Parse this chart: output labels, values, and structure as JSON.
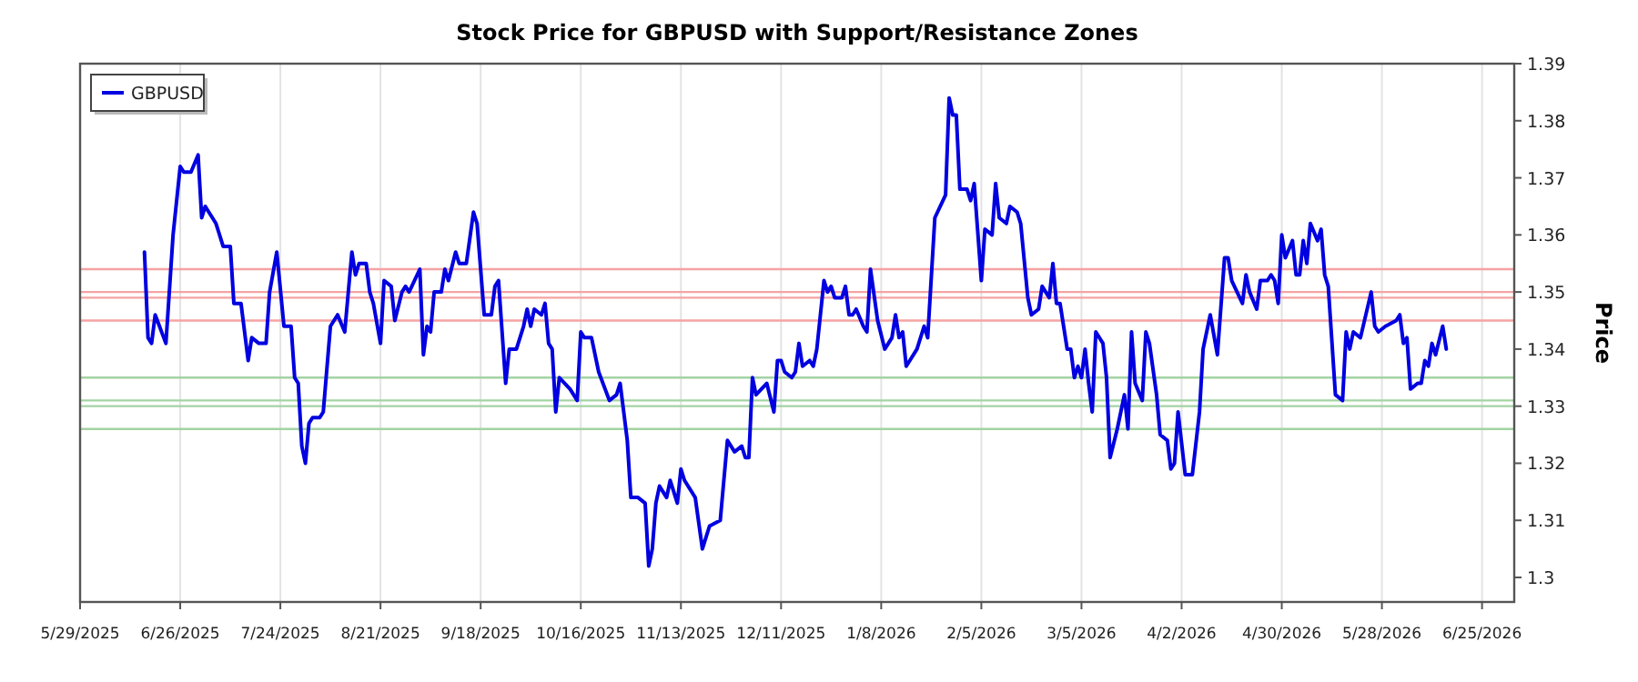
{
  "chart_data": {
    "type": "line",
    "title": "Stock Price for GBPUSD with Support/Resistance Zones",
    "ylabel": "Price",
    "x": [
      "2025-06-16",
      "2025-06-17",
      "2025-06-18",
      "2025-06-19",
      "2025-06-22",
      "2025-06-24",
      "2025-06-26",
      "2025-06-27",
      "2025-06-29",
      "2025-07-01",
      "2025-07-02",
      "2025-07-03",
      "2025-07-04",
      "2025-07-06",
      "2025-07-08",
      "2025-07-10",
      "2025-07-11",
      "2025-07-13",
      "2025-07-15",
      "2025-07-16",
      "2025-07-18",
      "2025-07-20",
      "2025-07-21",
      "2025-07-23",
      "2025-07-25",
      "2025-07-27",
      "2025-07-28",
      "2025-07-29",
      "2025-07-30",
      "2025-07-31",
      "2025-08-01",
      "2025-08-02",
      "2025-08-04",
      "2025-08-05",
      "2025-08-07",
      "2025-08-09",
      "2025-08-11",
      "2025-08-13",
      "2025-08-14",
      "2025-08-15",
      "2025-08-17",
      "2025-08-18",
      "2025-08-19",
      "2025-08-21",
      "2025-08-22",
      "2025-08-24",
      "2025-08-25",
      "2025-08-27",
      "2025-08-28",
      "2025-08-29",
      "2025-09-01",
      "2025-09-02",
      "2025-09-03",
      "2025-09-04",
      "2025-09-05",
      "2025-09-07",
      "2025-09-08",
      "2025-09-09",
      "2025-09-11",
      "2025-09-12",
      "2025-09-14",
      "2025-09-16",
      "2025-09-17",
      "2025-09-19",
      "2025-09-21",
      "2025-09-22",
      "2025-09-23",
      "2025-09-25",
      "2025-09-26",
      "2025-09-28",
      "2025-09-30",
      "2025-10-01",
      "2025-10-02",
      "2025-10-03",
      "2025-10-05",
      "2025-10-06",
      "2025-10-07",
      "2025-10-08",
      "2025-10-09",
      "2025-10-10",
      "2025-10-13",
      "2025-10-15",
      "2025-10-16",
      "2025-10-17",
      "2025-10-19",
      "2025-10-21",
      "2025-10-24",
      "2025-10-26",
      "2025-10-27",
      "2025-10-29",
      "2025-10-30",
      "2025-11-01",
      "2025-11-03",
      "2025-11-04",
      "2025-11-05",
      "2025-11-06",
      "2025-11-07",
      "2025-11-08",
      "2025-11-09",
      "2025-11-10",
      "2025-11-12",
      "2025-11-13",
      "2025-11-14",
      "2025-11-17",
      "2025-11-19",
      "2025-11-21",
      "2025-11-24",
      "2025-11-26",
      "2025-11-28",
      "2025-11-30",
      "2025-12-01",
      "2025-12-02",
      "2025-12-03",
      "2025-12-04",
      "2025-12-07",
      "2025-12-09",
      "2025-12-10",
      "2025-12-11",
      "2025-12-12",
      "2025-12-14",
      "2025-12-15",
      "2025-12-16",
      "2025-12-17",
      "2025-12-19",
      "2025-12-20",
      "2025-12-21",
      "2025-12-23",
      "2025-12-24",
      "2025-12-25",
      "2025-12-26",
      "2025-12-28",
      "2025-12-29",
      "2025-12-30",
      "2025-12-31",
      "2026-01-01",
      "2026-01-03",
      "2026-01-04",
      "2026-01-05",
      "2026-01-07",
      "2026-01-09",
      "2026-01-11",
      "2026-01-12",
      "2026-01-13",
      "2026-01-14",
      "2026-01-15",
      "2026-01-16",
      "2026-01-18",
      "2026-01-20",
      "2026-01-21",
      "2026-01-23",
      "2026-01-26",
      "2026-01-27",
      "2026-01-28",
      "2026-01-29",
      "2026-01-30",
      "2026-02-01",
      "2026-02-02",
      "2026-02-03",
      "2026-02-05",
      "2026-02-06",
      "2026-02-08",
      "2026-02-09",
      "2026-02-10",
      "2026-02-12",
      "2026-02-13",
      "2026-02-15",
      "2026-02-16",
      "2026-02-18",
      "2026-02-19",
      "2026-02-21",
      "2026-02-22",
      "2026-02-24",
      "2026-02-25",
      "2026-02-26",
      "2026-02-27",
      "2026-03-01",
      "2026-03-02",
      "2026-03-03",
      "2026-03-04",
      "2026-03-05",
      "2026-03-06",
      "2026-03-07",
      "2026-03-08",
      "2026-03-09",
      "2026-03-11",
      "2026-03-12",
      "2026-03-13",
      "2026-03-15",
      "2026-03-17",
      "2026-03-18",
      "2026-03-19",
      "2026-03-20",
      "2026-03-22",
      "2026-03-23",
      "2026-03-24",
      "2026-03-26",
      "2026-03-27",
      "2026-03-29",
      "2026-03-30",
      "2026-03-31",
      "2026-04-01",
      "2026-04-03",
      "2026-04-05",
      "2026-04-07",
      "2026-04-08",
      "2026-04-10",
      "2026-04-12",
      "2026-04-14",
      "2026-04-15",
      "2026-04-16",
      "2026-04-19",
      "2026-04-20",
      "2026-04-21",
      "2026-04-23",
      "2026-04-24",
      "2026-04-26",
      "2026-04-27",
      "2026-04-28",
      "2026-04-29",
      "2026-04-30",
      "2026-05-01",
      "2026-05-03",
      "2026-05-04",
      "2026-05-05",
      "2026-05-06",
      "2026-05-07",
      "2026-05-08",
      "2026-05-10",
      "2026-05-11",
      "2026-05-12",
      "2026-05-13",
      "2026-05-15",
      "2026-05-17",
      "2026-05-18",
      "2026-05-19",
      "2026-05-20",
      "2026-05-22",
      "2026-05-25",
      "2026-05-26",
      "2026-05-27",
      "2026-05-29",
      "2026-06-01",
      "2026-06-02",
      "2026-06-03",
      "2026-06-04",
      "2026-06-05",
      "2026-06-07",
      "2026-06-08",
      "2026-06-09",
      "2026-06-10",
      "2026-06-11",
      "2026-06-12",
      "2026-06-14",
      "2026-06-15"
    ],
    "series": [
      {
        "name": "GBPUSD",
        "color": "#0000e0",
        "values": [
          1.357,
          1.342,
          1.341,
          1.346,
          1.341,
          1.36,
          1.372,
          1.371,
          1.371,
          1.374,
          1.363,
          1.365,
          1.364,
          1.362,
          1.358,
          1.358,
          1.348,
          1.348,
          1.338,
          1.342,
          1.341,
          1.341,
          1.35,
          1.357,
          1.344,
          1.344,
          1.335,
          1.334,
          1.323,
          1.32,
          1.327,
          1.328,
          1.328,
          1.329,
          1.344,
          1.346,
          1.343,
          1.357,
          1.353,
          1.355,
          1.355,
          1.35,
          1.348,
          1.341,
          1.352,
          1.351,
          1.345,
          1.35,
          1.351,
          1.35,
          1.354,
          1.339,
          1.344,
          1.343,
          1.35,
          1.35,
          1.354,
          1.352,
          1.357,
          1.355,
          1.355,
          1.364,
          1.362,
          1.346,
          1.346,
          1.351,
          1.352,
          1.334,
          1.34,
          1.34,
          1.344,
          1.347,
          1.344,
          1.347,
          1.346,
          1.348,
          1.341,
          1.34,
          1.329,
          1.335,
          1.333,
          1.331,
          1.343,
          1.342,
          1.342,
          1.336,
          1.331,
          1.332,
          1.334,
          1.324,
          1.314,
          1.314,
          1.313,
          1.302,
          1.305,
          1.313,
          1.316,
          1.315,
          1.314,
          1.317,
          1.313,
          1.319,
          1.317,
          1.314,
          1.305,
          1.309,
          1.31,
          1.324,
          1.322,
          1.323,
          1.321,
          1.321,
          1.335,
          1.332,
          1.334,
          1.329,
          1.338,
          1.338,
          1.336,
          1.335,
          1.336,
          1.341,
          1.337,
          1.338,
          1.337,
          1.34,
          1.352,
          1.35,
          1.351,
          1.349,
          1.349,
          1.351,
          1.346,
          1.346,
          1.347,
          1.344,
          1.343,
          1.354,
          1.345,
          1.34,
          1.342,
          1.346,
          1.342,
          1.343,
          1.337,
          1.338,
          1.34,
          1.344,
          1.342,
          1.363,
          1.367,
          1.384,
          1.381,
          1.381,
          1.368,
          1.368,
          1.366,
          1.369,
          1.352,
          1.361,
          1.36,
          1.369,
          1.363,
          1.362,
          1.365,
          1.364,
          1.362,
          1.349,
          1.346,
          1.347,
          1.351,
          1.349,
          1.355,
          1.348,
          1.348,
          1.34,
          1.34,
          1.335,
          1.337,
          1.335,
          1.34,
          1.334,
          1.329,
          1.343,
          1.341,
          1.335,
          1.321,
          1.326,
          1.332,
          1.326,
          1.343,
          1.334,
          1.331,
          1.343,
          1.341,
          1.332,
          1.325,
          1.324,
          1.319,
          1.32,
          1.329,
          1.318,
          1.318,
          1.329,
          1.34,
          1.346,
          1.339,
          1.356,
          1.356,
          1.352,
          1.348,
          1.353,
          1.35,
          1.347,
          1.352,
          1.352,
          1.353,
          1.352,
          1.348,
          1.36,
          1.356,
          1.359,
          1.353,
          1.353,
          1.359,
          1.355,
          1.362,
          1.359,
          1.361,
          1.353,
          1.351,
          1.332,
          1.331,
          1.343,
          1.34,
          1.343,
          1.342,
          1.35,
          1.344,
          1.343,
          1.344,
          1.345,
          1.346,
          1.341,
          1.342,
          1.333,
          1.334,
          1.334,
          1.338,
          1.337,
          1.341,
          1.339,
          1.344,
          1.34
        ]
      }
    ],
    "xlim": [
      "2025-05-29",
      "2026-07-04"
    ],
    "xticks": [
      {
        "value": "2025-05-29",
        "label": "5/29/2025"
      },
      {
        "value": "2025-06-26",
        "label": "6/26/2025"
      },
      {
        "value": "2025-07-24",
        "label": "7/24/2025"
      },
      {
        "value": "2025-08-21",
        "label": "8/21/2025"
      },
      {
        "value": "2025-09-18",
        "label": "9/18/2025"
      },
      {
        "value": "2025-10-16",
        "label": "10/16/2025"
      },
      {
        "value": "2025-11-13",
        "label": "11/13/2025"
      },
      {
        "value": "2025-12-11",
        "label": "12/11/2025"
      },
      {
        "value": "2026-01-08",
        "label": "1/8/2026"
      },
      {
        "value": "2026-02-05",
        "label": "2/5/2026"
      },
      {
        "value": "2026-03-05",
        "label": "3/5/2026"
      },
      {
        "value": "2026-04-02",
        "label": "4/2/2026"
      },
      {
        "value": "2026-04-30",
        "label": "4/30/2026"
      },
      {
        "value": "2026-05-28",
        "label": "5/28/2026"
      },
      {
        "value": "2026-06-25",
        "label": "6/25/2026"
      }
    ],
    "ylim": [
      1.2957,
      1.39
    ],
    "yticks": [
      1.3,
      1.31,
      1.32,
      1.33,
      1.34,
      1.35,
      1.36,
      1.37,
      1.38,
      1.39
    ],
    "ref_lines": [
      {
        "axis": "y",
        "value": 1.354,
        "color": "#f5a3a3"
      },
      {
        "axis": "y",
        "value": 1.35,
        "color": "#f5a3a3"
      },
      {
        "axis": "y",
        "value": 1.349,
        "color": "#f5a3a3"
      },
      {
        "axis": "y",
        "value": 1.345,
        "color": "#f5a3a3"
      },
      {
        "axis": "y",
        "value": 1.335,
        "color": "#a3d3a3"
      },
      {
        "axis": "y",
        "value": 1.331,
        "color": "#a3d3a3"
      },
      {
        "axis": "y",
        "value": 1.33,
        "color": "#a3d3a3"
      },
      {
        "axis": "y",
        "value": 1.326,
        "color": "#a3d3a3"
      }
    ],
    "grid": "x",
    "legend": "top left",
    "line_style": "solid",
    "marker": "none"
  }
}
